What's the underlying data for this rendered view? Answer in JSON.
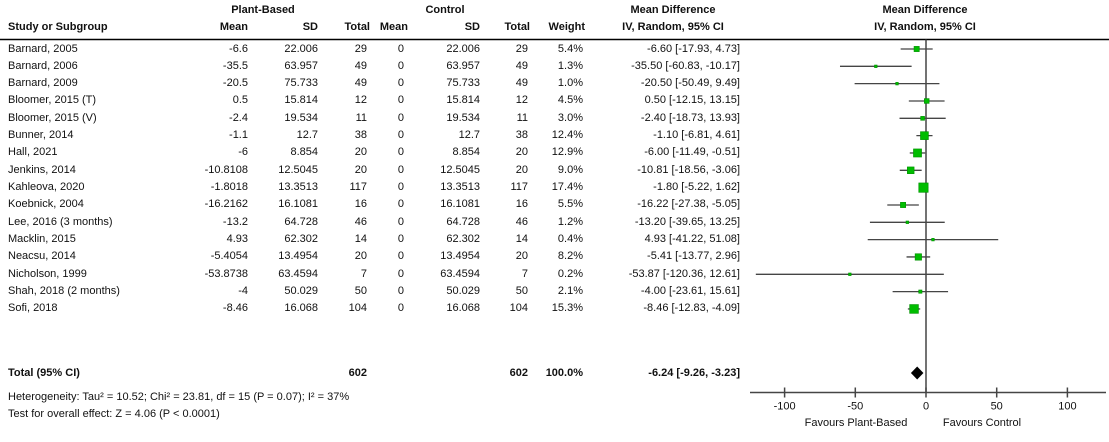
{
  "header": {
    "group_plant": "Plant-Based",
    "group_control": "Control",
    "col_study": "Study or Subgroup",
    "col_mean": "Mean",
    "col_sd": "SD",
    "col_total": "Total",
    "col_weight": "Weight",
    "md_title": "Mean Difference",
    "md_subtitle": "IV, Random, 95% CI",
    "plot_title": "Mean Difference",
    "plot_subtitle": "IV, Random, 95% CI"
  },
  "footer": {
    "total_label": "Total (95% CI)",
    "total_plant_n": "602",
    "total_control_n": "602",
    "total_weight": "100.0%",
    "total_md_text": "-6.24 [-9.26, -3.23]",
    "heterogeneity": "Heterogeneity: Tau² = 10.52; Chi² = 23.81, df = 15 (P = 0.07); I² = 37%",
    "overall_effect": "Test for overall effect: Z = 4.06 (P < 0.0001)",
    "favours_left": "Favours Plant-Based",
    "favours_right": "Favours Control"
  },
  "chart_data": {
    "type": "forest",
    "effect_measure": "Mean Difference (IV, Random, 95% CI)",
    "axis": {
      "ticks": [
        -100,
        -50,
        0,
        50,
        100
      ],
      "xlim": [
        -124,
        127
      ],
      "zero_line": 0
    },
    "studies": [
      {
        "name": "Barnard, 2005",
        "mean1": "-6.6",
        "sd1": "22.006",
        "total1": "29",
        "mean2": "0",
        "sd2": "22.006",
        "total2": "29",
        "weight": "5.4%",
        "w": 5.4,
        "md": -6.6,
        "lo": -17.93,
        "hi": 4.73,
        "md_text": "-6.60 [-17.93, 4.73]"
      },
      {
        "name": "Barnard, 2006",
        "mean1": "-35.5",
        "sd1": "63.957",
        "total1": "49",
        "mean2": "0",
        "sd2": "63.957",
        "total2": "49",
        "weight": "1.3%",
        "w": 1.3,
        "md": -35.5,
        "lo": -60.83,
        "hi": -10.17,
        "md_text": "-35.50 [-60.83, -10.17]"
      },
      {
        "name": "Barnard, 2009",
        "mean1": "-20.5",
        "sd1": "75.733",
        "total1": "49",
        "mean2": "0",
        "sd2": "75.733",
        "total2": "49",
        "weight": "1.0%",
        "w": 1.0,
        "md": -20.5,
        "lo": -50.49,
        "hi": 9.49,
        "md_text": "-20.50 [-50.49, 9.49]"
      },
      {
        "name": "Bloomer, 2015 (T)",
        "mean1": "0.5",
        "sd1": "15.814",
        "total1": "12",
        "mean2": "0",
        "sd2": "15.814",
        "total2": "12",
        "weight": "4.5%",
        "w": 4.5,
        "md": 0.5,
        "lo": -12.15,
        "hi": 13.15,
        "md_text": "0.50 [-12.15, 13.15]"
      },
      {
        "name": "Bloomer, 2015 (V)",
        "mean1": "-2.4",
        "sd1": "19.534",
        "total1": "11",
        "mean2": "0",
        "sd2": "19.534",
        "total2": "11",
        "weight": "3.0%",
        "w": 3.0,
        "md": -2.4,
        "lo": -18.73,
        "hi": 13.93,
        "md_text": "-2.40 [-18.73, 13.93]"
      },
      {
        "name": "Bunner, 2014",
        "mean1": "-1.1",
        "sd1": "12.7",
        "total1": "38",
        "mean2": "0",
        "sd2": "12.7",
        "total2": "38",
        "weight": "12.4%",
        "w": 12.4,
        "md": -1.1,
        "lo": -6.81,
        "hi": 4.61,
        "md_text": "-1.10 [-6.81, 4.61]"
      },
      {
        "name": "Hall, 2021",
        "mean1": "-6",
        "sd1": "8.854",
        "total1": "20",
        "mean2": "0",
        "sd2": "8.854",
        "total2": "20",
        "weight": "12.9%",
        "w": 12.9,
        "md": -6.0,
        "lo": -11.49,
        "hi": -0.51,
        "md_text": "-6.00 [-11.49, -0.51]"
      },
      {
        "name": "Jenkins, 2014",
        "mean1": "-10.8108",
        "sd1": "12.5045",
        "total1": "20",
        "mean2": "0",
        "sd2": "12.5045",
        "total2": "20",
        "weight": "9.0%",
        "w": 9.0,
        "md": -10.81,
        "lo": -18.56,
        "hi": -3.06,
        "md_text": "-10.81 [-18.56, -3.06]"
      },
      {
        "name": "Kahleova, 2020",
        "mean1": "-1.8018",
        "sd1": "13.3513",
        "total1": "117",
        "mean2": "0",
        "sd2": "13.3513",
        "total2": "117",
        "weight": "17.4%",
        "w": 17.4,
        "md": -1.8,
        "lo": -5.22,
        "hi": 1.62,
        "md_text": "-1.80 [-5.22, 1.62]"
      },
      {
        "name": "Koebnick, 2004",
        "mean1": "-16.2162",
        "sd1": "16.1081",
        "total1": "16",
        "mean2": "0",
        "sd2": "16.1081",
        "total2": "16",
        "weight": "5.5%",
        "w": 5.5,
        "md": -16.22,
        "lo": -27.38,
        "hi": -5.05,
        "md_text": "-16.22 [-27.38, -5.05]"
      },
      {
        "name": "Lee, 2016 (3 months)",
        "mean1": "-13.2",
        "sd1": "64.728",
        "total1": "46",
        "mean2": "0",
        "sd2": "64.728",
        "total2": "46",
        "weight": "1.2%",
        "w": 1.2,
        "md": -13.2,
        "lo": -39.65,
        "hi": 13.25,
        "md_text": "-13.20 [-39.65, 13.25]"
      },
      {
        "name": "Macklin, 2015",
        "mean1": "4.93",
        "sd1": "62.302",
        "total1": "14",
        "mean2": "0",
        "sd2": "62.302",
        "total2": "14",
        "weight": "0.4%",
        "w": 0.4,
        "md": 4.93,
        "lo": -41.22,
        "hi": 51.08,
        "md_text": "4.93 [-41.22, 51.08]"
      },
      {
        "name": "Neacsu, 2014",
        "mean1": "-5.4054",
        "sd1": "13.4954",
        "total1": "20",
        "mean2": "0",
        "sd2": "13.4954",
        "total2": "20",
        "weight": "8.2%",
        "w": 8.2,
        "md": -5.41,
        "lo": -13.77,
        "hi": 2.96,
        "md_text": "-5.41 [-13.77, 2.96]"
      },
      {
        "name": "Nicholson, 1999",
        "mean1": "-53.8738",
        "sd1": "63.4594",
        "total1": "7",
        "mean2": "0",
        "sd2": "63.4594",
        "total2": "7",
        "weight": "0.2%",
        "w": 0.2,
        "md": -53.87,
        "lo": -120.36,
        "hi": 12.61,
        "md_text": "-53.87 [-120.36, 12.61]"
      },
      {
        "name": "Shah, 2018 (2 months)",
        "mean1": "-4",
        "sd1": "50.029",
        "total1": "50",
        "mean2": "0",
        "sd2": "50.029",
        "total2": "50",
        "weight": "2.1%",
        "w": 2.1,
        "md": -4.0,
        "lo": -23.61,
        "hi": 15.61,
        "md_text": "-4.00 [-23.61, 15.61]"
      },
      {
        "name": "Sofi, 2018",
        "mean1": "-8.46",
        "sd1": "16.068",
        "total1": "104",
        "mean2": "0",
        "sd2": "16.068",
        "total2": "104",
        "weight": "15.3%",
        "w": 15.3,
        "md": -8.46,
        "lo": -12.83,
        "hi": -4.09,
        "md_text": "-8.46 [-12.83, -4.09]"
      }
    ],
    "total": {
      "md": -6.24,
      "lo": -9.26,
      "hi": -3.23
    },
    "colors": {
      "marker_green": "#00bd00",
      "marker_border": "#009100",
      "line_gray": "#454545",
      "diamond_black": "#000000"
    }
  }
}
